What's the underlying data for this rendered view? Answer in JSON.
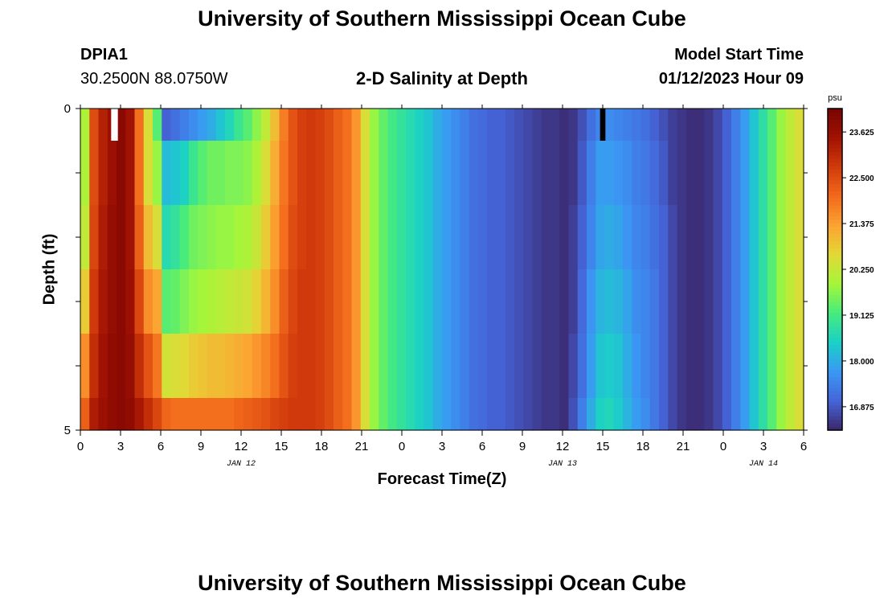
{
  "page": {
    "title_top": "University of Southern Mississippi Ocean Cube",
    "title_bottom": "University of Southern Mississippi Ocean Cube",
    "station_id": "DPIA1",
    "station_coords": "30.2500N  88.0750W",
    "chart_title": "2-D Salinity at Depth",
    "model_start_label": "Model Start Time",
    "model_start_value": "01/12/2023 Hour 09"
  },
  "colors": {
    "colormap": [
      "#3b2569",
      "#4564d8",
      "#3b97f4",
      "#1ad0c8",
      "#45eb7e",
      "#a4f63a",
      "#e2d936",
      "#fca432",
      "#f26a1c",
      "#d13b0b",
      "#a11203",
      "#7a0403"
    ],
    "missing_white": "#ffffff",
    "missing_black": "#000000"
  },
  "chart_data": {
    "type": "heatmap",
    "title": "2-D Salinity at Depth",
    "xlabel": "Forecast Time(Z)",
    "ylabel": "Depth (ft)",
    "x_start_hour_index": 0,
    "x_step_hours": 1,
    "xlim": [
      0,
      54
    ],
    "ylim": [
      0,
      5
    ],
    "depth_rows": [
      0,
      0.5,
      1.5,
      2.5,
      3.5,
      4.5
    ],
    "xticks": [
      0,
      3,
      6,
      9,
      12,
      15,
      18,
      21,
      24,
      27,
      30,
      33,
      36,
      39,
      42,
      45,
      48,
      51,
      54
    ],
    "xtick_labels": [
      "0",
      "3",
      "6",
      "9",
      "12",
      "15",
      "18",
      "21",
      "0",
      "3",
      "6",
      "9",
      "12",
      "15",
      "18",
      "21",
      "0",
      "3",
      "6"
    ],
    "yticks": [
      0,
      1,
      2,
      3,
      4,
      5
    ],
    "ytick_labels": [
      "0",
      "",
      "",
      "",
      "",
      "5"
    ],
    "date_labels": [
      {
        "text": "JAN 12",
        "x": 12
      },
      {
        "text": "JAN 13",
        "x": 36
      },
      {
        "text": "JAN 14",
        "x": 51
      }
    ],
    "colorbar": {
      "unit": "psu",
      "min": 16.3,
      "max": 24.2,
      "ticks": [
        16.875,
        18.0,
        19.125,
        20.25,
        21.375,
        22.5,
        23.625
      ],
      "tick_labels": [
        "16.875",
        "18.000",
        "19.125",
        "20.250",
        "21.375",
        "22.500",
        "23.625"
      ]
    },
    "missing": [
      {
        "x": [
          2.3,
          2.8
        ],
        "y": [
          0,
          0.5
        ],
        "color": "white"
      },
      {
        "x": [
          38.8,
          39.2
        ],
        "y": [
          0,
          0.5
        ],
        "color": "black"
      }
    ],
    "rows": [
      [
        20.0,
        22.5,
        23.2,
        23.6,
        23.9,
        23.5,
        22.0,
        20.5,
        19.3,
        17.0,
        17.2,
        17.4,
        17.6,
        17.8,
        18.0,
        18.3,
        18.6,
        19.0,
        19.3,
        19.7,
        20.2,
        21.0,
        21.8,
        22.4,
        22.7,
        22.8,
        22.7,
        22.5,
        22.2,
        22.0,
        21.5,
        20.5,
        19.8,
        19.4,
        19.1,
        18.9,
        18.7,
        18.5,
        18.3,
        18.0,
        17.8,
        17.6,
        17.4,
        17.2,
        17.1,
        17.0,
        17.0,
        16.9,
        16.8,
        16.7,
        16.6,
        16.5,
        16.5,
        16.4,
        16.5,
        16.8,
        17.2,
        17.5,
        17.6,
        17.5,
        17.4,
        17.3,
        17.2,
        17.0,
        16.8,
        16.6,
        16.5,
        16.4,
        16.4,
        16.5,
        16.7,
        17.0,
        17.4,
        17.8,
        18.3,
        18.8,
        19.3,
        19.8,
        20.2,
        20.5
      ],
      [
        20.0,
        22.5,
        23.2,
        23.6,
        23.9,
        23.5,
        22.0,
        20.5,
        19.8,
        18.2,
        18.3,
        18.5,
        19.0,
        19.3,
        19.5,
        19.5,
        19.6,
        19.6,
        19.7,
        20.0,
        20.5,
        21.2,
        21.9,
        22.4,
        22.7,
        22.8,
        22.7,
        22.5,
        22.2,
        22.0,
        21.5,
        20.5,
        19.8,
        19.4,
        19.1,
        18.9,
        18.7,
        18.5,
        18.3,
        18.0,
        17.8,
        17.6,
        17.4,
        17.2,
        17.1,
        17.0,
        17.0,
        16.9,
        16.8,
        16.7,
        16.6,
        16.5,
        16.5,
        16.4,
        16.5,
        16.9,
        17.4,
        17.8,
        17.8,
        17.7,
        17.6,
        17.4,
        17.3,
        17.1,
        16.9,
        16.6,
        16.5,
        16.4,
        16.4,
        16.5,
        16.7,
        17.0,
        17.4,
        17.8,
        18.3,
        18.8,
        19.3,
        19.8,
        20.2,
        20.5
      ],
      [
        20.2,
        22.6,
        23.3,
        23.7,
        23.9,
        23.5,
        22.2,
        21.0,
        20.5,
        18.7,
        18.9,
        19.2,
        19.5,
        19.6,
        19.7,
        19.8,
        19.8,
        19.9,
        20.0,
        20.3,
        20.8,
        21.4,
        22.0,
        22.5,
        22.7,
        22.8,
        22.7,
        22.5,
        22.2,
        22.0,
        21.5,
        20.5,
        19.8,
        19.4,
        19.1,
        18.9,
        18.7,
        18.5,
        18.3,
        18.0,
        17.8,
        17.6,
        17.4,
        17.2,
        17.1,
        17.0,
        17.0,
        16.9,
        16.8,
        16.7,
        16.6,
        16.5,
        16.5,
        16.4,
        16.6,
        17.0,
        17.5,
        17.9,
        18.0,
        17.9,
        17.7,
        17.5,
        17.4,
        17.2,
        17.0,
        16.7,
        16.5,
        16.4,
        16.4,
        16.5,
        16.7,
        17.0,
        17.4,
        17.8,
        18.3,
        18.8,
        19.3,
        19.8,
        20.2,
        20.5
      ],
      [
        20.8,
        22.8,
        23.4,
        23.7,
        23.9,
        23.6,
        22.6,
        21.6,
        21.3,
        19.3,
        19.4,
        19.6,
        19.8,
        19.9,
        20.0,
        20.1,
        20.2,
        20.3,
        20.4,
        20.7,
        21.1,
        21.6,
        22.2,
        22.6,
        22.8,
        22.8,
        22.7,
        22.5,
        22.2,
        22.0,
        21.5,
        20.5,
        19.8,
        19.4,
        19.1,
        18.9,
        18.7,
        18.5,
        18.3,
        18.0,
        17.8,
        17.6,
        17.4,
        17.2,
        17.1,
        17.0,
        17.0,
        16.9,
        16.8,
        16.7,
        16.6,
        16.5,
        16.5,
        16.4,
        16.6,
        17.1,
        17.7,
        18.1,
        18.2,
        18.1,
        17.9,
        17.6,
        17.5,
        17.3,
        17.0,
        16.7,
        16.5,
        16.4,
        16.4,
        16.5,
        16.7,
        17.0,
        17.4,
        17.8,
        18.3,
        18.8,
        19.3,
        19.8,
        20.2,
        20.5
      ],
      [
        21.6,
        23.0,
        23.5,
        23.8,
        23.9,
        23.7,
        23.0,
        22.4,
        21.9,
        20.4,
        20.5,
        20.6,
        20.8,
        20.9,
        21.0,
        21.0,
        21.1,
        21.2,
        21.3,
        21.5,
        21.7,
        22.0,
        22.4,
        22.7,
        22.8,
        22.8,
        22.7,
        22.5,
        22.2,
        22.0,
        21.5,
        20.5,
        19.8,
        19.4,
        19.1,
        18.9,
        18.7,
        18.5,
        18.3,
        18.0,
        17.8,
        17.6,
        17.4,
        17.2,
        17.1,
        17.0,
        17.0,
        16.9,
        16.8,
        16.7,
        16.6,
        16.5,
        16.5,
        16.4,
        16.7,
        17.2,
        17.8,
        18.3,
        18.4,
        18.3,
        18.0,
        17.7,
        17.5,
        17.3,
        17.0,
        16.7,
        16.5,
        16.4,
        16.4,
        16.5,
        16.7,
        17.0,
        17.4,
        17.8,
        18.3,
        18.8,
        19.3,
        19.8,
        20.2,
        20.5
      ],
      [
        22.2,
        23.3,
        23.6,
        23.8,
        23.9,
        23.8,
        23.4,
        23.0,
        22.6,
        22.1,
        22.0,
        22.0,
        22.0,
        22.0,
        22.0,
        22.0,
        22.0,
        22.1,
        22.2,
        22.3,
        22.4,
        22.6,
        22.7,
        22.8,
        22.8,
        22.8,
        22.7,
        22.5,
        22.2,
        22.0,
        21.5,
        20.5,
        19.8,
        19.4,
        19.1,
        18.9,
        18.7,
        18.5,
        18.3,
        18.0,
        17.8,
        17.6,
        17.4,
        17.2,
        17.1,
        17.0,
        17.0,
        16.9,
        16.8,
        16.7,
        16.6,
        16.5,
        16.5,
        16.4,
        16.8,
        17.4,
        18.0,
        18.5,
        18.6,
        18.4,
        18.1,
        17.8,
        17.6,
        17.3,
        17.0,
        16.7,
        16.5,
        16.4,
        16.4,
        16.5,
        16.7,
        17.0,
        17.4,
        17.8,
        18.3,
        18.8,
        19.3,
        19.8,
        20.2,
        20.5
      ]
    ]
  }
}
